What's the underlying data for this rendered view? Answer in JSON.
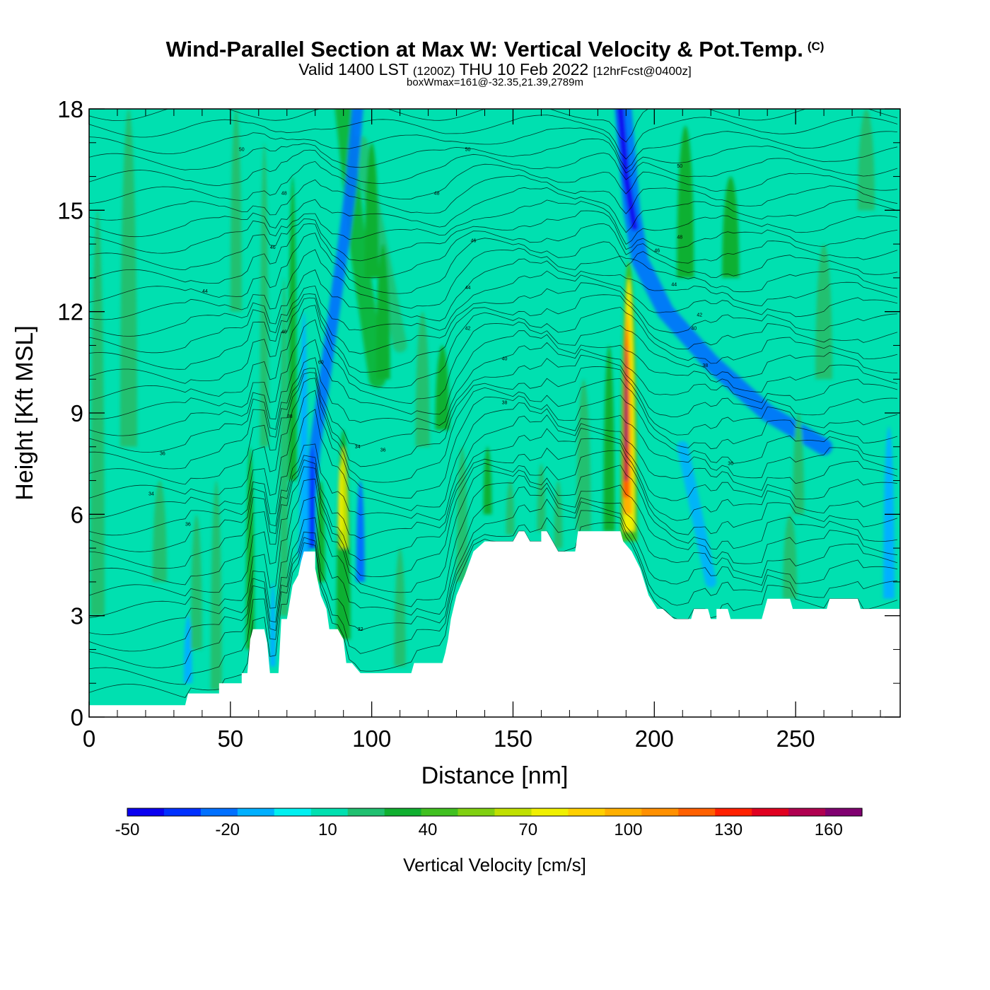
{
  "title": {
    "main": "Wind-Parallel Section at Max W: Vertical Velocity & Pot.Temp.",
    "mark": "(C)",
    "sub_valid": "Valid 1400 LST",
    "sub_utc": "(1200Z)",
    "sub_day": "THU 10 Feb 2022",
    "sub_fcst": "[12hrFcst@0400z]",
    "sub2": "boxWmax=161@-32.35,21.39,2789m"
  },
  "chart_data": {
    "type": "heatmap",
    "title": "Wind-Parallel Section at Max W: Vertical Velocity & Pot.Temp.",
    "xlabel": "Distance [nm]",
    "ylabel": "Height [Kft MSL]",
    "xlim": [
      0,
      287
    ],
    "ylim": [
      0,
      18
    ],
    "x_ticks": [
      0,
      50,
      100,
      150,
      200,
      250
    ],
    "y_ticks": [
      0,
      3,
      6,
      9,
      12,
      15,
      18
    ],
    "x_tick_labels": [
      "0",
      "50",
      "100",
      "150",
      "200",
      "250"
    ],
    "y_tick_labels": [
      "0",
      "3",
      "6",
      "9",
      "12",
      "15",
      "18"
    ],
    "background_value": 0,
    "terrain_profile": [
      {
        "x": 0,
        "y": 0.35
      },
      {
        "x": 34,
        "y": 0.35
      },
      {
        "x": 35,
        "y": 0.7
      },
      {
        "x": 46,
        "y": 0.7
      },
      {
        "x": 46,
        "y": 1.0
      },
      {
        "x": 54,
        "y": 1.0
      },
      {
        "x": 54,
        "y": 1.3
      },
      {
        "x": 56,
        "y": 1.3
      },
      {
        "x": 57,
        "y": 2.3
      },
      {
        "x": 58,
        "y": 2.6
      },
      {
        "x": 62,
        "y": 2.6
      },
      {
        "x": 63,
        "y": 2.2
      },
      {
        "x": 64,
        "y": 1.3
      },
      {
        "x": 67,
        "y": 1.3
      },
      {
        "x": 68,
        "y": 2.9
      },
      {
        "x": 70,
        "y": 2.9
      },
      {
        "x": 72,
        "y": 3.9
      },
      {
        "x": 74,
        "y": 4.2
      },
      {
        "x": 75,
        "y": 4.6
      },
      {
        "x": 76,
        "y": 4.9
      },
      {
        "x": 80,
        "y": 4.9
      },
      {
        "x": 80,
        "y": 4.4
      },
      {
        "x": 82,
        "y": 3.6
      },
      {
        "x": 84,
        "y": 3.2
      },
      {
        "x": 85,
        "y": 2.6
      },
      {
        "x": 88,
        "y": 2.6
      },
      {
        "x": 90,
        "y": 2.3
      },
      {
        "x": 91,
        "y": 1.6
      },
      {
        "x": 93,
        "y": 1.6
      },
      {
        "x": 96,
        "y": 1.3
      },
      {
        "x": 114,
        "y": 1.3
      },
      {
        "x": 115,
        "y": 1.6
      },
      {
        "x": 125,
        "y": 1.6
      },
      {
        "x": 126,
        "y": 1.9
      },
      {
        "x": 127,
        "y": 2.3
      },
      {
        "x": 128,
        "y": 2.9
      },
      {
        "x": 130,
        "y": 3.6
      },
      {
        "x": 133,
        "y": 4.2
      },
      {
        "x": 136,
        "y": 4.9
      },
      {
        "x": 140,
        "y": 5.2
      },
      {
        "x": 150,
        "y": 5.2
      },
      {
        "x": 152,
        "y": 5.5
      },
      {
        "x": 154,
        "y": 5.5
      },
      {
        "x": 156,
        "y": 5.2
      },
      {
        "x": 160,
        "y": 5.2
      },
      {
        "x": 160,
        "y": 5.5
      },
      {
        "x": 162,
        "y": 5.5
      },
      {
        "x": 164,
        "y": 5.2
      },
      {
        "x": 166,
        "y": 4.9
      },
      {
        "x": 172,
        "y": 4.9
      },
      {
        "x": 173,
        "y": 5.5
      },
      {
        "x": 188,
        "y": 5.5
      },
      {
        "x": 189,
        "y": 5.2
      },
      {
        "x": 192,
        "y": 4.9
      },
      {
        "x": 195,
        "y": 4.4
      },
      {
        "x": 198,
        "y": 3.6
      },
      {
        "x": 201,
        "y": 3.2
      },
      {
        "x": 203,
        "y": 3.2
      },
      {
        "x": 207,
        "y": 2.9
      },
      {
        "x": 213,
        "y": 2.9
      },
      {
        "x": 214,
        "y": 3.2
      },
      {
        "x": 219,
        "y": 3.2
      },
      {
        "x": 220,
        "y": 2.9
      },
      {
        "x": 222,
        "y": 2.9
      },
      {
        "x": 222,
        "y": 3.2
      },
      {
        "x": 226,
        "y": 3.2
      },
      {
        "x": 227,
        "y": 2.9
      },
      {
        "x": 238,
        "y": 2.9
      },
      {
        "x": 239,
        "y": 3.2
      },
      {
        "x": 240,
        "y": 3.5
      },
      {
        "x": 248,
        "y": 3.5
      },
      {
        "x": 249,
        "y": 3.2
      },
      {
        "x": 261,
        "y": 3.2
      },
      {
        "x": 262,
        "y": 3.5
      },
      {
        "x": 272,
        "y": 3.5
      },
      {
        "x": 273,
        "y": 3.2
      },
      {
        "x": 287,
        "y": 3.2
      }
    ],
    "vertical_velocity_features": [
      {
        "x": 3,
        "ybot": 3,
        "ytop": 15,
        "w": 5,
        "value": 10
      },
      {
        "x": 14,
        "ybot": 8,
        "ytop": 18,
        "w": 6,
        "value": 10
      },
      {
        "x": 25,
        "ybot": 4,
        "ytop": 7,
        "w": 5,
        "value": 10
      },
      {
        "x": 35,
        "ybot": 1,
        "ytop": 3,
        "w": 3,
        "value": -20
      },
      {
        "x": 38,
        "ybot": 2,
        "ytop": 6,
        "w": 4,
        "value": 10
      },
      {
        "x": 45,
        "ybot": 0.8,
        "ytop": 7,
        "w": 4,
        "value": 10
      },
      {
        "x": 52,
        "ybot": 12,
        "ytop": 18,
        "w": 4,
        "value": 10
      },
      {
        "x": 57,
        "ybot": 2,
        "ytop": 8,
        "w": 3,
        "value": 20
      },
      {
        "x": 62,
        "ybot": 8,
        "ytop": 17,
        "w": 3,
        "value": 10
      },
      {
        "x": 65,
        "ybot": 1.5,
        "ytop": 4,
        "w": 2,
        "value": -20
      },
      {
        "x": 69,
        "ybot": 3,
        "ytop": 13,
        "w": 3,
        "value": 10
      },
      {
        "x": 72,
        "ybot": 7,
        "ytop": 16,
        "w": 3,
        "value": 20
      },
      {
        "x": 76,
        "ybot": 4.5,
        "ytop": 12,
        "w": 3,
        "value": -20
      },
      {
        "x": 79,
        "ybot": 5,
        "ytop": 8,
        "w": 2,
        "value": -40
      },
      {
        "x": 82,
        "ybot": 4,
        "ytop": 7,
        "w": 3,
        "value": 20
      },
      {
        "x": 90,
        "ybot": 2.3,
        "ytop": 8.5,
        "w": 5,
        "value": 20
      },
      {
        "x": 90,
        "ybot": 5,
        "ytop": 8,
        "w": 3,
        "value": 50
      },
      {
        "x": 89,
        "ybot": 5.5,
        "ytop": 7.5,
        "w": 1.5,
        "value": 60
      },
      {
        "x": 96,
        "ybot": 4,
        "ytop": 7,
        "w": 3,
        "value": -30
      },
      {
        "x": 104,
        "ybot": 10,
        "ytop": 14,
        "w": 5,
        "value": 20
      },
      {
        "x": 100,
        "ybot": 13,
        "ytop": 17,
        "w": 5,
        "value": 20
      },
      {
        "x": 110,
        "ybot": 1.5,
        "ytop": 5,
        "w": 4,
        "value": 10
      },
      {
        "x": 118,
        "ybot": 8,
        "ytop": 12,
        "w": 5,
        "value": 10
      },
      {
        "x": 125,
        "ybot": 8.5,
        "ytop": 11,
        "w": 5,
        "value": 20
      },
      {
        "x": 132,
        "ybot": 4,
        "ytop": 8,
        "w": 4,
        "value": 10
      },
      {
        "x": 141,
        "ybot": 6,
        "ytop": 8,
        "w": 3,
        "value": 20
      },
      {
        "x": 149,
        "ybot": 5.4,
        "ytop": 7,
        "w": 3,
        "value": 10
      },
      {
        "x": 160,
        "ybot": 5.5,
        "ytop": 7.5,
        "w": 3,
        "value": 10
      },
      {
        "x": 166,
        "ybot": 5,
        "ytop": 7,
        "w": 3,
        "value": 10
      },
      {
        "x": 175,
        "ybot": 5.5,
        "ytop": 10,
        "w": 5,
        "value": 10
      },
      {
        "x": 184,
        "ybot": 5.5,
        "ytop": 11,
        "w": 4,
        "value": 20
      },
      {
        "x": 191,
        "ybot": 5.2,
        "ytop": 13.5,
        "w": 6,
        "value": 30
      },
      {
        "x": 191,
        "ybot": 5.5,
        "ytop": 13,
        "w": 4,
        "value": 60
      },
      {
        "x": 190.5,
        "ybot": 6,
        "ytop": 12,
        "w": 3,
        "value": 80
      },
      {
        "x": 190,
        "ybot": 6.5,
        "ytop": 11.5,
        "w": 2.2,
        "value": 100
      },
      {
        "x": 190,
        "ybot": 7,
        "ytop": 11,
        "w": 1.4,
        "value": 130
      },
      {
        "x": 190,
        "ybot": 8,
        "ytop": 10,
        "w": 0.8,
        "value": 150
      },
      {
        "x": 211,
        "ybot": 13,
        "ytop": 17.5,
        "w": 6,
        "value": 20
      },
      {
        "x": 227,
        "ybot": 13,
        "ytop": 16,
        "w": 6,
        "value": 20
      },
      {
        "x": 248,
        "ybot": 3.5,
        "ytop": 6,
        "w": 5,
        "value": 10
      },
      {
        "x": 251,
        "ybot": 6,
        "ytop": 9,
        "w": 4,
        "value": 10
      },
      {
        "x": 283,
        "ybot": 3.5,
        "ytop": 8.6,
        "w": 4,
        "value": -20
      },
      {
        "x": 260,
        "ybot": 10,
        "ytop": 14,
        "w": 6,
        "value": 10
      },
      {
        "x": 275,
        "ybot": 15,
        "ytop": 18,
        "w": 6,
        "value": 10
      }
    ],
    "downdraft_bands": [
      {
        "points": [
          [
            76,
            4.9
          ],
          [
            80,
            8
          ],
          [
            85,
            11
          ],
          [
            90,
            14
          ],
          [
            93,
            16
          ],
          [
            95,
            18
          ]
        ],
        "value": -30,
        "width": 4
      },
      {
        "points": [
          [
            189,
            18
          ],
          [
            192,
            15
          ],
          [
            195,
            13.5
          ],
          [
            204,
            12
          ],
          [
            220,
            10.5
          ],
          [
            240,
            9
          ],
          [
            260,
            8
          ]
        ],
        "value": -30,
        "width": 6
      },
      {
        "points": [
          [
            188,
            18
          ],
          [
            190,
            16
          ],
          [
            193,
            14.5
          ]
        ],
        "value": -50,
        "width": 2.5
      },
      {
        "points": [
          [
            210,
            8
          ],
          [
            215,
            6
          ],
          [
            220,
            4
          ]
        ],
        "value": -20,
        "width": 4
      }
    ],
    "updraft_bands": [
      {
        "points": [
          [
            90,
            18
          ],
          [
            95,
            14
          ],
          [
            102,
            10
          ]
        ],
        "value": 20,
        "width": 6
      },
      {
        "points": [
          [
            96,
            17
          ],
          [
            103,
            14
          ],
          [
            110,
            11
          ]
        ],
        "value": 10,
        "width": 5
      }
    ],
    "theta_contours": {
      "units": "C",
      "labels": [
        {
          "x": 54,
          "y": 16.8,
          "text": "50"
        },
        {
          "x": 69,
          "y": 15.5,
          "text": "48"
        },
        {
          "x": 65,
          "y": 13.9,
          "text": "46"
        },
        {
          "x": 41,
          "y": 12.6,
          "text": "44"
        },
        {
          "x": 69,
          "y": 11.4,
          "text": "40"
        },
        {
          "x": 82,
          "y": 10.5,
          "text": "60"
        },
        {
          "x": 71,
          "y": 8.9,
          "text": "38"
        },
        {
          "x": 26,
          "y": 7.8,
          "text": "36"
        },
        {
          "x": 22,
          "y": 6.6,
          "text": "34"
        },
        {
          "x": 35,
          "y": 5.7,
          "text": "36"
        },
        {
          "x": 95,
          "y": 8.0,
          "text": "34"
        },
        {
          "x": 104,
          "y": 7.9,
          "text": "36"
        },
        {
          "x": 96,
          "y": 2.6,
          "text": "32"
        },
        {
          "x": 134,
          "y": 16.8,
          "text": "50"
        },
        {
          "x": 123,
          "y": 15.5,
          "text": "48"
        },
        {
          "x": 136,
          "y": 14.1,
          "text": "46"
        },
        {
          "x": 134,
          "y": 12.7,
          "text": "44"
        },
        {
          "x": 134,
          "y": 11.5,
          "text": "42"
        },
        {
          "x": 147,
          "y": 10.6,
          "text": "40"
        },
        {
          "x": 147,
          "y": 9.3,
          "text": "38"
        },
        {
          "x": 209,
          "y": 16.3,
          "text": "50"
        },
        {
          "x": 209,
          "y": 14.2,
          "text": "48"
        },
        {
          "x": 201,
          "y": 13.8,
          "text": "46"
        },
        {
          "x": 207,
          "y": 12.8,
          "text": "44"
        },
        {
          "x": 216,
          "y": 11.9,
          "text": "42"
        },
        {
          "x": 214,
          "y": 11.5,
          "text": "40"
        },
        {
          "x": 218,
          "y": 10.4,
          "text": "38"
        },
        {
          "x": 227,
          "y": 7.5,
          "text": "36"
        }
      ]
    }
  },
  "colorbar": {
    "title": "Vertical Velocity [cm/s]",
    "tick_labels": [
      "-50",
      "-20",
      "10",
      "40",
      "70",
      "100",
      "130",
      "160"
    ],
    "tick_values": [
      -50,
      -20,
      10,
      40,
      70,
      100,
      130,
      160
    ],
    "colors": [
      "#0a00f0",
      "#0030ff",
      "#0070ff",
      "#00b0ff",
      "#00f0f0",
      "#00e0b0",
      "#20c070",
      "#10b030",
      "#40c020",
      "#80d010",
      "#c0e000",
      "#f0f000",
      "#ffd000",
      "#ffb000",
      "#ff9000",
      "#ff6000",
      "#ff2000",
      "#e00020",
      "#b00050",
      "#800070"
    ],
    "boundaries": [
      -50,
      -40,
      -30,
      -20,
      -10,
      0,
      10,
      20,
      30,
      40,
      50,
      60,
      70,
      80,
      90,
      100,
      110,
      120,
      130,
      140,
      150,
      160,
      170
    ]
  }
}
